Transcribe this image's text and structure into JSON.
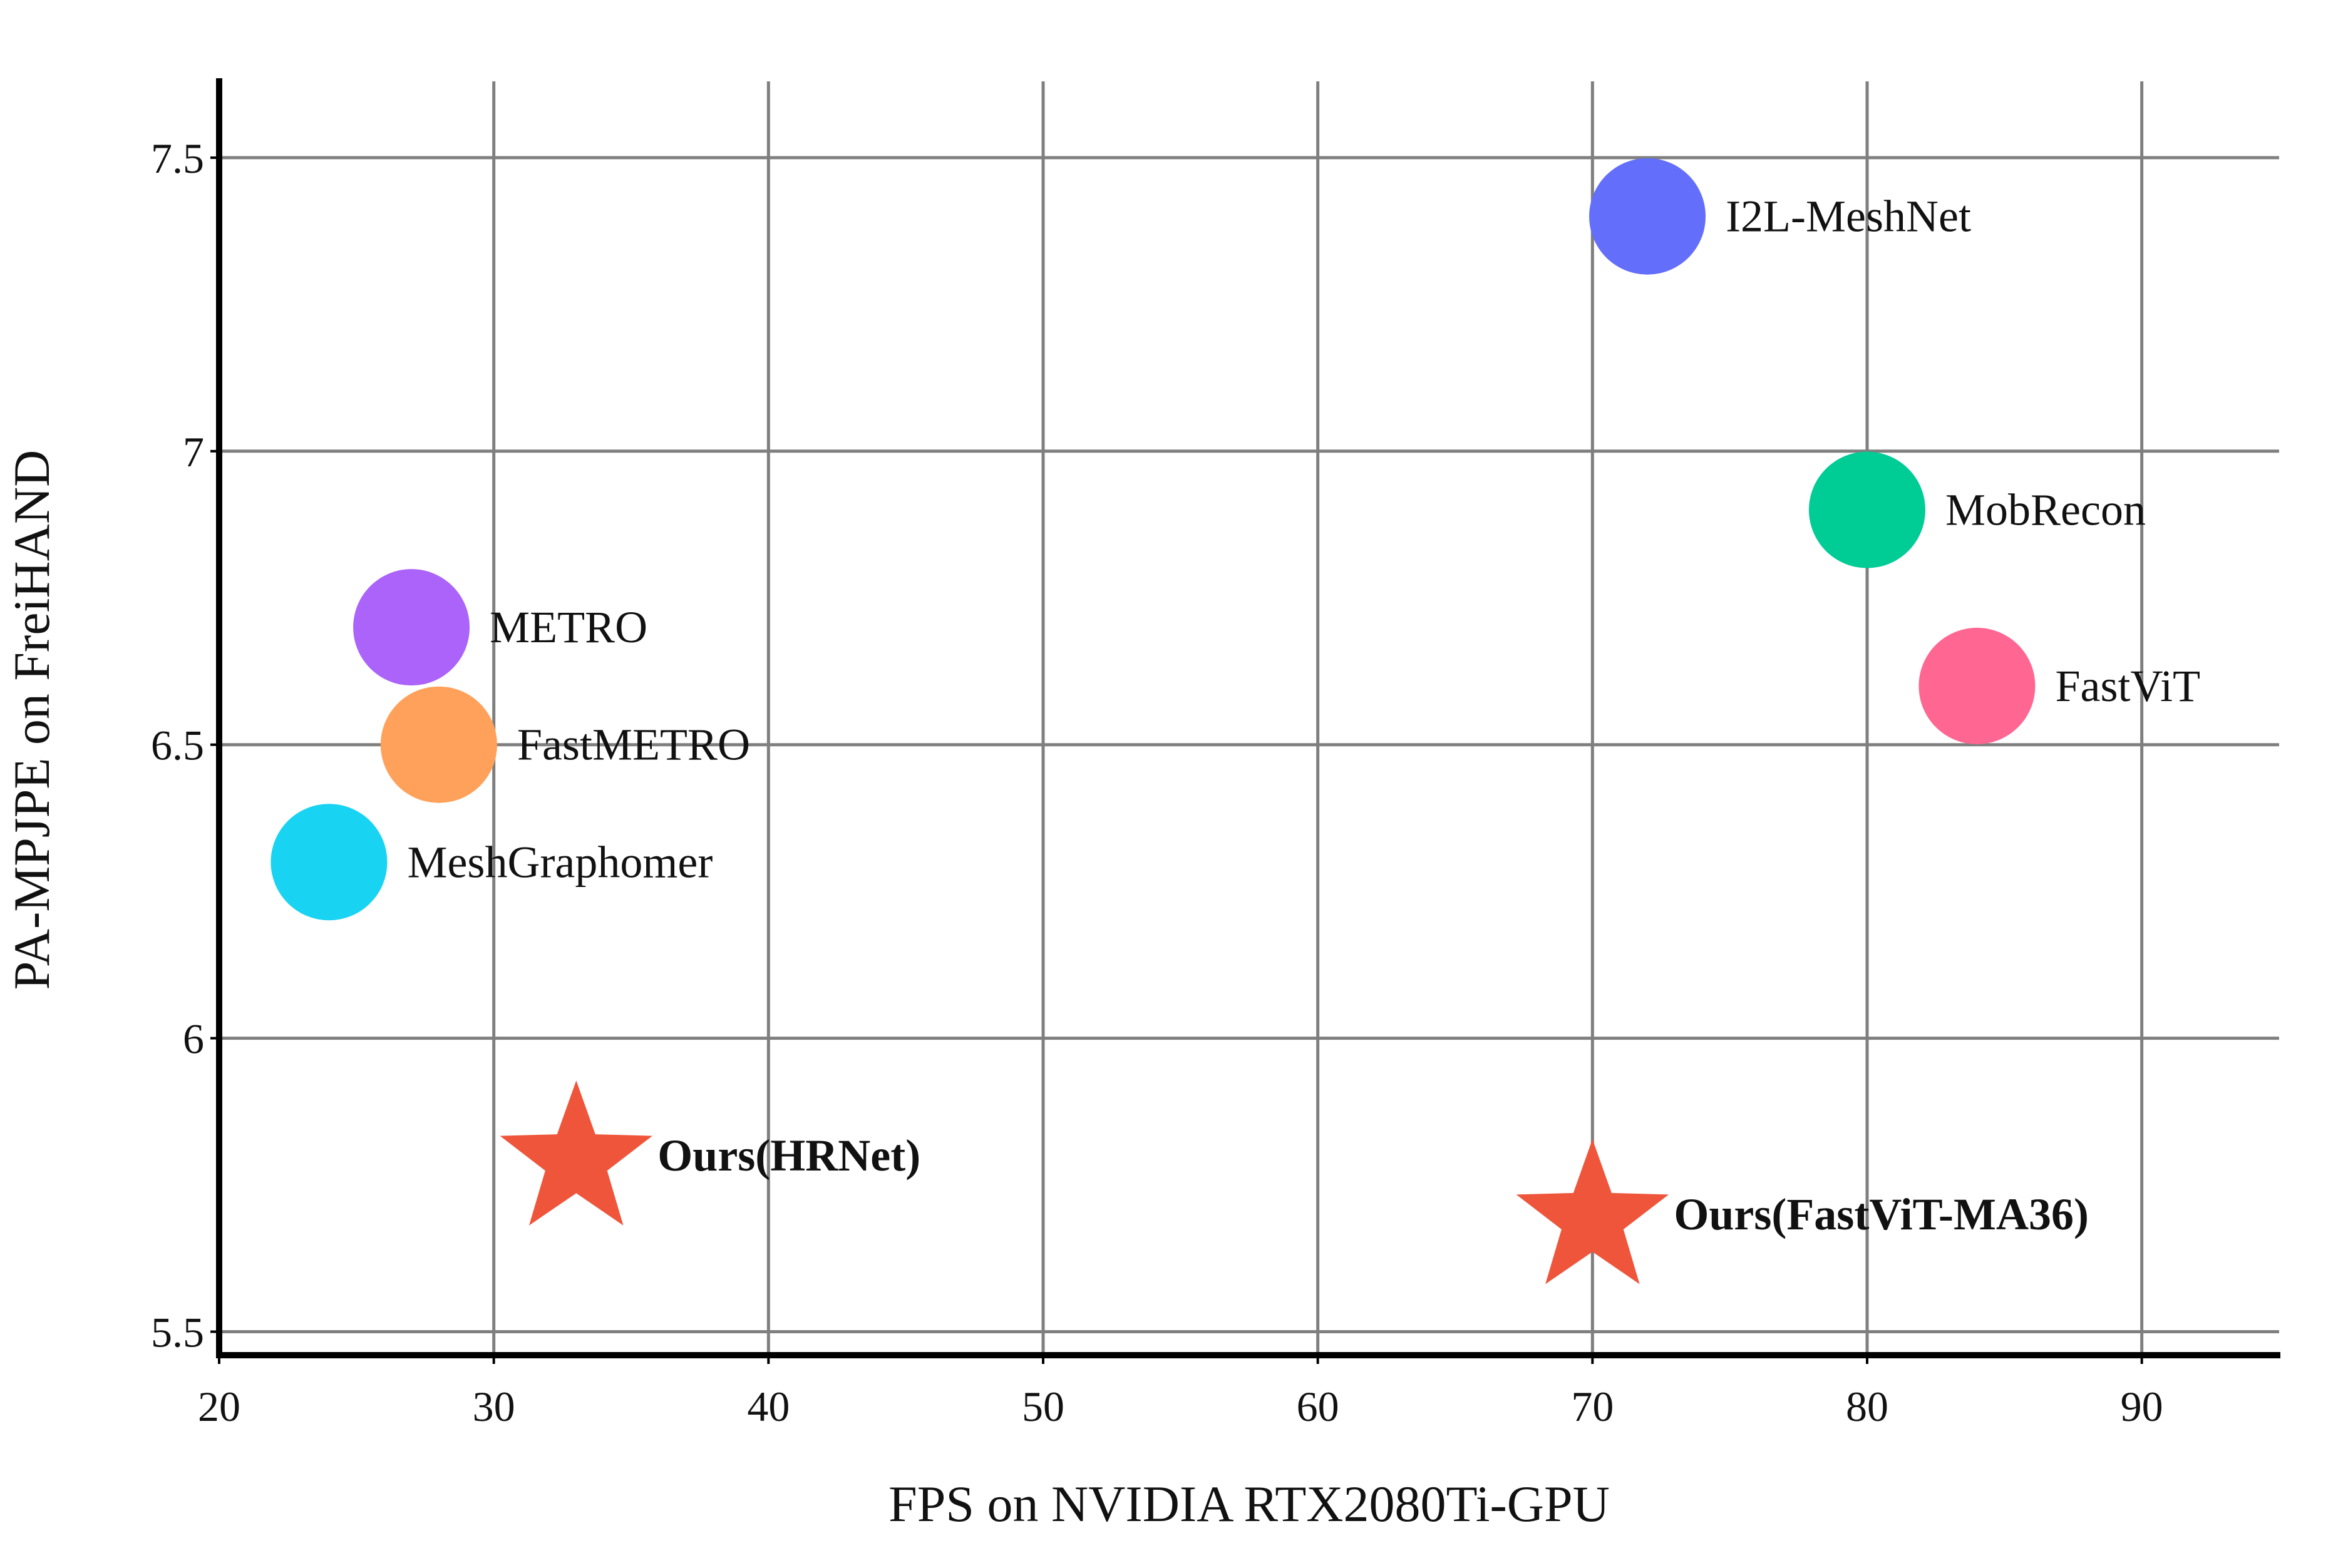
{
  "chart_data": {
    "type": "scatter",
    "title": "",
    "xlabel": "FPS on NVIDIA RTX2080Ti-GPU",
    "ylabel": "PA-MPJPE on FreiHAND",
    "xlim": [
      20,
      95
    ],
    "ylim": [
      5.46,
      7.63
    ],
    "x_ticks": [
      20,
      30,
      40,
      50,
      60,
      70,
      80,
      90
    ],
    "x_tick_labels": [
      "20",
      "30",
      "40",
      "50",
      "60",
      "70",
      "80",
      "90"
    ],
    "y_ticks": [
      5.5,
      6,
      6.5,
      7,
      7.5
    ],
    "y_tick_labels": [
      "5.5",
      "6",
      "6.5",
      "7",
      "7.5"
    ],
    "grid": true,
    "grid_color": "#7f7f7f",
    "points": [
      {
        "label": "I2L-MeshNet",
        "x": 72,
        "y": 7.4,
        "color": "#636efa",
        "marker": "circle",
        "bold": false
      },
      {
        "label": "MobRecon",
        "x": 80,
        "y": 6.9,
        "color": "#00cc96",
        "marker": "circle",
        "bold": false
      },
      {
        "label": "METRO",
        "x": 27,
        "y": 6.7,
        "color": "#ab63fa",
        "marker": "circle",
        "bold": false
      },
      {
        "label": "FastViT",
        "x": 84,
        "y": 6.6,
        "color": "#ff6692",
        "marker": "circle",
        "bold": false
      },
      {
        "label": "FastMETRO",
        "x": 28,
        "y": 6.5,
        "color": "#ffa15a",
        "marker": "circle",
        "bold": false
      },
      {
        "label": "MeshGraphomer",
        "x": 24,
        "y": 6.3,
        "color": "#19d3f3",
        "marker": "circle",
        "bold": false
      },
      {
        "label": "Ours(HRNet)",
        "x": 33,
        "y": 5.8,
        "color": "#ef553b",
        "marker": "star",
        "bold": true
      },
      {
        "label": "Ours(FastViT-MA36)",
        "x": 70,
        "y": 5.7,
        "color": "#ef553b",
        "marker": "star",
        "bold": true
      }
    ]
  }
}
